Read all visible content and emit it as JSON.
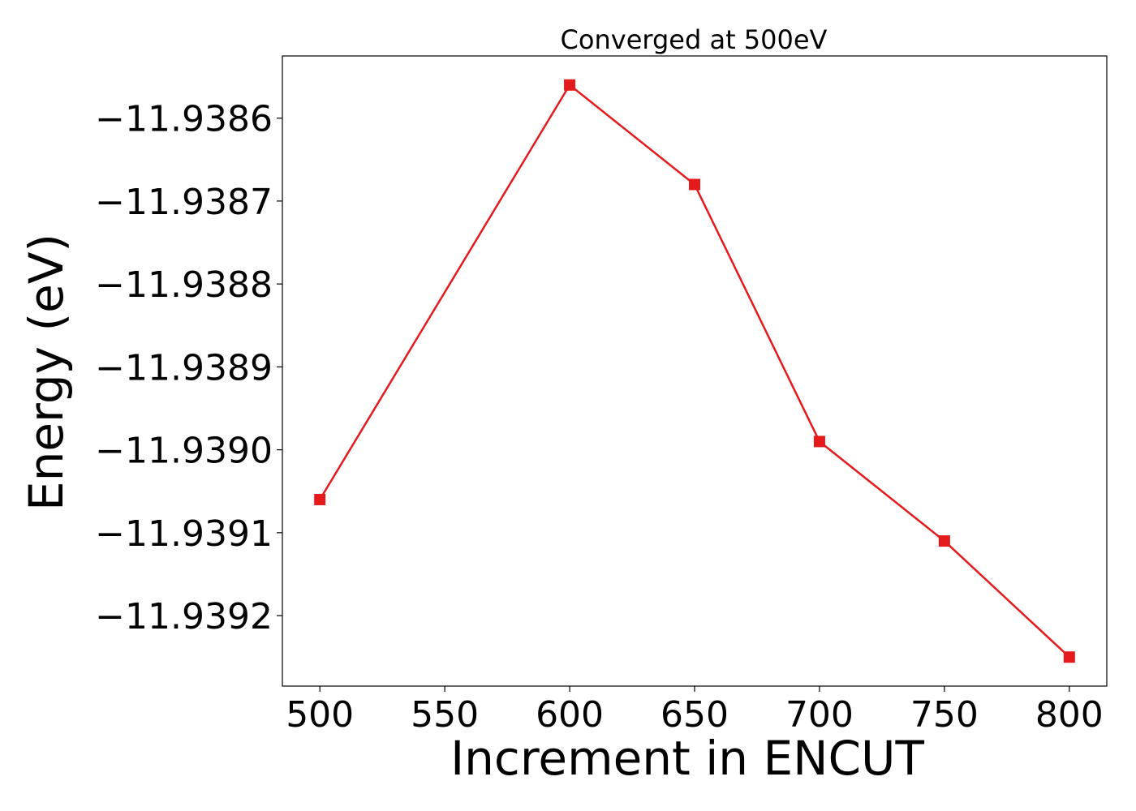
{
  "chart_data": {
    "type": "line",
    "title": "Converged at 500eV",
    "xlabel": "Increment in ENCUT",
    "ylabel": "Energy (eV)",
    "x": [
      500,
      600,
      650,
      700,
      750,
      800
    ],
    "series": [
      {
        "values": [
          -11.93906,
          -11.93856,
          -11.93868,
          -11.93899,
          -11.93911,
          -11.93925
        ],
        "color": "#e41a1c",
        "marker": "square"
      }
    ],
    "xticks": [
      500,
      550,
      600,
      650,
      700,
      750,
      800
    ],
    "xtick_labels": [
      "500",
      "550",
      "600",
      "650",
      "700",
      "750",
      "800"
    ],
    "yticks": [
      -11.9386,
      -11.9387,
      -11.9388,
      -11.9389,
      -11.939,
      -11.9391,
      -11.9392
    ],
    "ytick_labels": [
      "−11.9386",
      "−11.9387",
      "−11.9388",
      "−11.9389",
      "−11.9390",
      "−11.9391",
      "−11.9392"
    ],
    "xlim": [
      485,
      815
    ],
    "ylim": [
      -11.939285,
      -11.938525
    ],
    "grid": false,
    "legend": "none"
  }
}
